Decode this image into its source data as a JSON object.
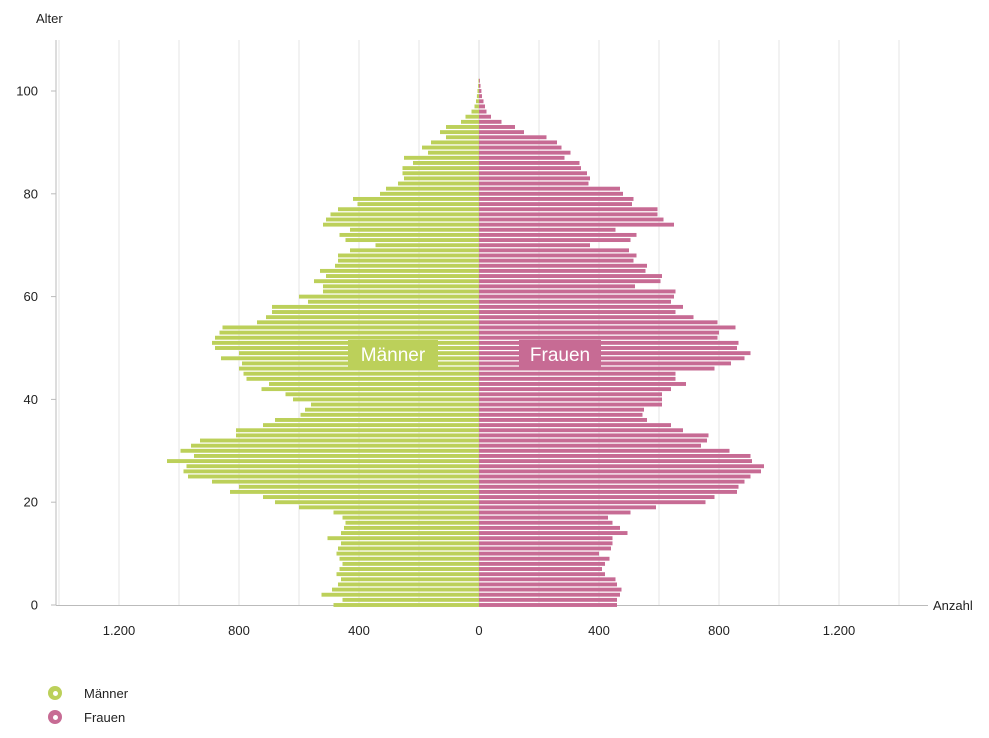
{
  "chart_data": {
    "type": "bar",
    "orientation": "horizontal",
    "subtype": "population-pyramid",
    "ylabel": "Alter",
    "xlabel": "Anzahl",
    "xlim": [
      -1400,
      1400
    ],
    "ylim": [
      0,
      102
    ],
    "x_ticks": [
      -1200,
      -800,
      -400,
      0,
      400,
      800,
      1200
    ],
    "x_tick_labels": [
      "1.200",
      "800",
      "400",
      "0",
      "400",
      "800",
      "1.200"
    ],
    "y_ticks": [
      0,
      20,
      40,
      60,
      80,
      100
    ],
    "y_tick_labels": [
      "0",
      "20",
      "40",
      "60",
      "80",
      "100"
    ],
    "grid": "vertical",
    "legend_position": "bottom-left",
    "ages": [
      0,
      1,
      2,
      3,
      4,
      5,
      6,
      7,
      8,
      9,
      10,
      11,
      12,
      13,
      14,
      15,
      16,
      17,
      18,
      19,
      20,
      21,
      22,
      23,
      24,
      25,
      26,
      27,
      28,
      29,
      30,
      31,
      32,
      33,
      34,
      35,
      36,
      37,
      38,
      39,
      40,
      41,
      42,
      43,
      44,
      45,
      46,
      47,
      48,
      49,
      50,
      51,
      52,
      53,
      54,
      55,
      56,
      57,
      58,
      59,
      60,
      61,
      62,
      63,
      64,
      65,
      66,
      67,
      68,
      69,
      70,
      71,
      72,
      73,
      74,
      75,
      76,
      77,
      78,
      79,
      80,
      81,
      82,
      83,
      84,
      85,
      86,
      87,
      88,
      89,
      90,
      91,
      92,
      93,
      94,
      95,
      96,
      97,
      98,
      99,
      100,
      101,
      102
    ],
    "series": [
      {
        "name": "Männer",
        "color": "#bcd05a",
        "values": [
          485,
          455,
          525,
          490,
          470,
          460,
          475,
          465,
          455,
          465,
          475,
          470,
          460,
          505,
          460,
          450,
          445,
          455,
          485,
          600,
          680,
          720,
          830,
          800,
          890,
          970,
          985,
          975,
          1040,
          950,
          995,
          960,
          930,
          810,
          810,
          720,
          680,
          595,
          580,
          560,
          620,
          645,
          725,
          700,
          775,
          785,
          800,
          790,
          860,
          800,
          880,
          890,
          880,
          865,
          855,
          740,
          710,
          690,
          690,
          570,
          600,
          520,
          520,
          550,
          510,
          530,
          480,
          470,
          470,
          430,
          345,
          445,
          465,
          430,
          520,
          510,
          495,
          470,
          405,
          420,
          330,
          310,
          270,
          250,
          255,
          255,
          220,
          250,
          170,
          190,
          160,
          110,
          130,
          110,
          60,
          45,
          25,
          15,
          10,
          7,
          5,
          3,
          2
        ]
      },
      {
        "name": "Frauen",
        "color": "#c76b94",
        "values": [
          460,
          460,
          470,
          475,
          460,
          455,
          420,
          410,
          420,
          435,
          400,
          440,
          445,
          445,
          495,
          470,
          445,
          430,
          505,
          590,
          755,
          785,
          860,
          865,
          885,
          905,
          940,
          950,
          910,
          905,
          835,
          740,
          760,
          765,
          680,
          640,
          560,
          545,
          550,
          610,
          610,
          610,
          640,
          690,
          655,
          655,
          785,
          840,
          885,
          905,
          860,
          865,
          795,
          800,
          855,
          795,
          715,
          655,
          680,
          640,
          650,
          655,
          520,
          605,
          610,
          555,
          560,
          515,
          525,
          500,
          370,
          505,
          525,
          455,
          650,
          615,
          595,
          595,
          510,
          515,
          480,
          470,
          365,
          370,
          360,
          340,
          335,
          285,
          305,
          275,
          260,
          225,
          150,
          120,
          75,
          40,
          25,
          20,
          15,
          10,
          8,
          5,
          3
        ]
      }
    ]
  },
  "labels": {
    "y_axis_title": "Alter",
    "x_axis_title": "Anzahl",
    "center_label_left": "Männer",
    "center_label_right": "Frauen"
  },
  "legend": [
    {
      "label": "Männer",
      "color": "#bcd05a"
    },
    {
      "label": "Frauen",
      "color": "#c76b94"
    }
  ]
}
